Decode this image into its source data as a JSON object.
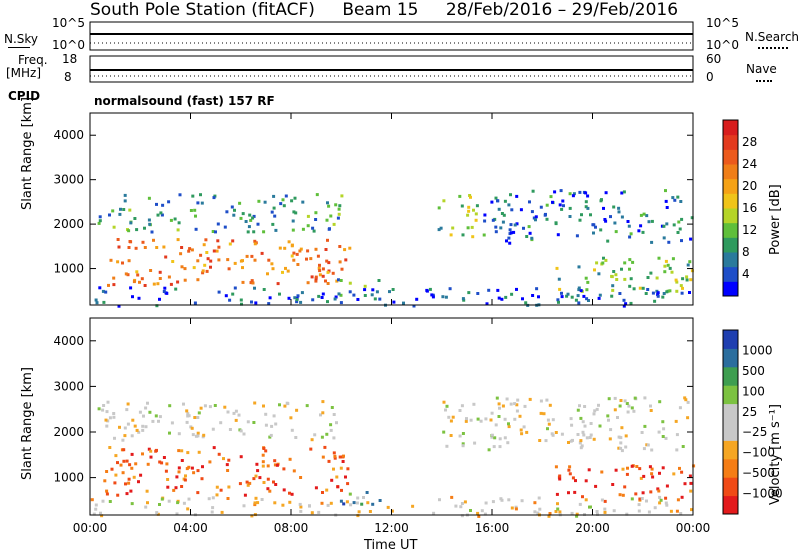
{
  "header": {
    "station": "South Pole Station (fitACF)",
    "beam": "Beam 15",
    "date_range": "28/Feb/2016 – 29/Feb/2016"
  },
  "top_panels": {
    "nsky_label": "N.Sky",
    "nsearch_label": "N.Search",
    "nsky_ticks": [
      "10^5",
      "10^0"
    ],
    "nsearch_ticks": [
      "10^5",
      "10^0"
    ],
    "freq_label_1": "Freq.",
    "freq_label_2": "[MHz]",
    "freq_ticks": [
      "18",
      "8"
    ],
    "nave_label": "Nave",
    "nave_ticks": [
      "60",
      "0"
    ],
    "cpid_label": "CPID",
    "cpid_value": "normalsound (fast) 157 RF"
  },
  "chart_data": [
    {
      "type": "heatmap",
      "name": "power",
      "ylabel": "Slant Range [km]",
      "ylim": [
        180,
        4500
      ],
      "yticks": [
        1000,
        2000,
        3000,
        4000
      ],
      "colorbar": {
        "label": "Power [dB]",
        "range": [
          0,
          32
        ],
        "ticks": [
          "28",
          "24",
          "20",
          "16",
          "12",
          "8",
          "4"
        ],
        "colors": [
          "#0000ff",
          "#1e4ec8",
          "#2a7a9c",
          "#2f9a5e",
          "#5fbf3a",
          "#b5d428",
          "#f0c419",
          "#f5a216",
          "#f07e18",
          "#ec5a1c",
          "#e33a1e",
          "#d81d1d"
        ]
      },
      "regions": [
        {
          "t": [
            0.3,
            10.0
          ],
          "r": [
            1850,
            2700
          ],
          "level": 0.28
        },
        {
          "t": [
            0.5,
            10.3
          ],
          "r": [
            620,
            1700
          ],
          "level": 0.72
        },
        {
          "t": [
            9.8,
            11.5
          ],
          "r": [
            400,
            800
          ],
          "level": 0.3
        },
        {
          "t": [
            13.8,
            15.4
          ],
          "r": [
            1700,
            2700
          ],
          "level": 0.4
        },
        {
          "t": [
            15.5,
            24.0
          ],
          "r": [
            1600,
            2800
          ],
          "level": 0.18
        },
        {
          "t": [
            18.5,
            24.0
          ],
          "r": [
            500,
            1300
          ],
          "level": 0.38
        },
        {
          "t": [
            0.0,
            24.0
          ],
          "r": [
            180,
            600
          ],
          "level": 0.15
        }
      ]
    },
    {
      "type": "heatmap",
      "name": "velocity",
      "xlabel": "Time UT",
      "ylabel": "Slant Range [km]",
      "xlim": [
        0,
        24
      ],
      "xticks": [
        "00:00",
        "04:00",
        "08:00",
        "12:00",
        "16:00",
        "20:00",
        "00:00"
      ],
      "ylim": [
        180,
        4500
      ],
      "yticks": [
        1000,
        2000,
        3000,
        4000
      ],
      "colorbar": {
        "label": "Velocity [m s⁻¹]",
        "range": [
          -1200,
          1200
        ],
        "ticks": [
          "1000",
          "500",
          "100",
          "25",
          "−25",
          "−100",
          "−500",
          "−1000"
        ],
        "colors": [
          "#e31a1c",
          "#f04a16",
          "#f57d15",
          "#f5a623",
          "#c8c8c8",
          "#c8c8c8",
          "#7cc241",
          "#3e9e50",
          "#2b6e9e",
          "#1f3fb0"
        ]
      },
      "regions": [
        {
          "t": [
            0.3,
            10.0
          ],
          "r": [
            1850,
            2700
          ],
          "level": 0.5
        },
        {
          "t": [
            0.5,
            10.3
          ],
          "r": [
            620,
            1700
          ],
          "level": 0.2
        },
        {
          "t": [
            9.8,
            11.5
          ],
          "r": [
            400,
            800
          ],
          "level": 0.75
        },
        {
          "t": [
            13.8,
            15.4
          ],
          "r": [
            1700,
            2700
          ],
          "level": 0.5
        },
        {
          "t": [
            15.5,
            24.0
          ],
          "r": [
            1600,
            2800
          ],
          "level": 0.5
        },
        {
          "t": [
            18.5,
            24.0
          ],
          "r": [
            500,
            1300
          ],
          "level": 0.15
        },
        {
          "t": [
            0.0,
            24.0
          ],
          "r": [
            180,
            600
          ],
          "level": 0.45
        }
      ]
    }
  ]
}
